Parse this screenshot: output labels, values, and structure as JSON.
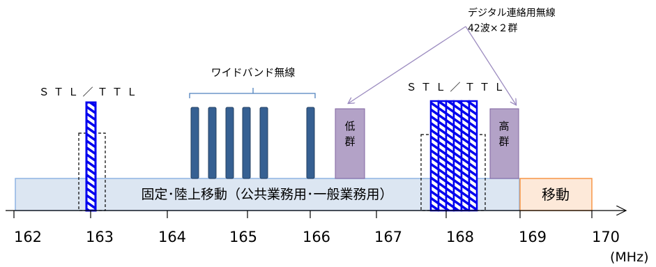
{
  "axis": {
    "ticks": [
      "162",
      "163",
      "164",
      "165",
      "166",
      "167",
      "168",
      "169",
      "170"
    ],
    "unit": "(MHz)"
  },
  "bands": {
    "fixed_land_mobile": "固定･陸上移動（公共業務用･一般業務用）",
    "mobile": "移動"
  },
  "allocations": {
    "stl_ttl_left": "ＳＴＬ／ＴＴＬ",
    "stl_ttl_right": "ＳＴＬ／ＴＴＬ",
    "wideband": "ワイドバンド無線",
    "low_group": [
      "低",
      "群"
    ],
    "high_group": [
      "高",
      "群"
    ],
    "digital_link_title": "デジタル連絡用無線",
    "digital_link_count": "42波×２群"
  },
  "colors": {
    "fixed_band_fill": "#dce6f2",
    "fixed_band_stroke": "#8eb4e3",
    "mobile_fill": "#fde9d9",
    "mobile_stroke": "#f79646",
    "wideband_bar": "#366092",
    "group_fill": "#b3a2c7",
    "stl_blue": "#0000ee",
    "arrow_purple": "#b3a2c7"
  }
}
